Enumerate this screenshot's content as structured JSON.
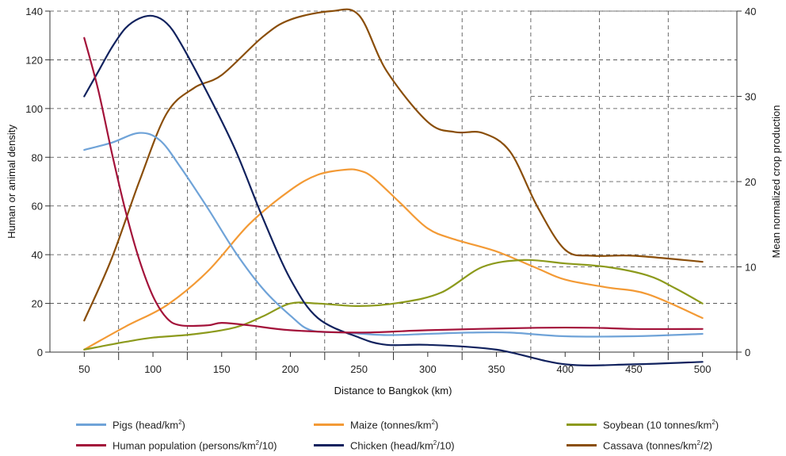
{
  "chart_data": {
    "type": "line",
    "title": "",
    "xlabel": "Distance to Bangkok (km)",
    "ylabel_left": "Human or animal density",
    "ylabel_right": "Mean normalized crop production",
    "xlim": [
      25,
      525
    ],
    "ylim_left": [
      0,
      140
    ],
    "ylim_right": [
      0,
      40
    ],
    "x_ticks": [
      50,
      100,
      150,
      200,
      250,
      300,
      350,
      400,
      450,
      500
    ],
    "y_left_ticks": [
      0,
      20,
      40,
      60,
      80,
      100,
      120,
      140
    ],
    "y_right_ticks": [
      0,
      10,
      20,
      30,
      40
    ],
    "grid": "dashed",
    "legend_position": "bottom",
    "series": [
      {
        "name": "Pigs (head/km2)",
        "axis": "left",
        "color": "#6fa3d8",
        "x": [
          50,
          70,
          90,
          105,
          120,
          140,
          160,
          180,
          200,
          215,
          240,
          270,
          300,
          330,
          360,
          400,
          450,
          500
        ],
        "y": [
          83,
          86,
          90,
          87,
          76,
          59,
          41,
          26,
          15,
          9,
          8,
          7,
          7.5,
          8,
          8,
          6.5,
          6.5,
          7.5
        ]
      },
      {
        "name": "Human population (persons/km2/10)",
        "axis": "left",
        "color": "#a3123a",
        "x": [
          50,
          60,
          70,
          80,
          90,
          100,
          110,
          120,
          140,
          150,
          170,
          200,
          250,
          300,
          380,
          420,
          450,
          500
        ],
        "y": [
          129,
          108,
          82,
          58,
          38,
          23,
          14,
          11,
          11,
          12,
          11,
          9,
          8,
          9,
          10,
          10,
          9.5,
          9.5
        ]
      },
      {
        "name": "Maize (tonnes/km2)",
        "axis": "right",
        "color": "#f39a35",
        "x": [
          50,
          80,
          110,
          140,
          170,
          200,
          220,
          240,
          250,
          260,
          280,
          300,
          320,
          350,
          380,
          400,
          430,
          460,
          500
        ],
        "y": [
          0.3,
          3.0,
          5.5,
          9.5,
          15,
          19,
          20.8,
          21.4,
          21.3,
          20.5,
          17.5,
          14.5,
          13.2,
          11.8,
          9.8,
          8.5,
          7.6,
          6.8,
          4.0
        ]
      },
      {
        "name": "Chicken (head/km2/10)",
        "axis": "left",
        "color": "#11225e",
        "x": [
          50,
          60,
          70,
          80,
          90,
          100,
          110,
          120,
          140,
          160,
          180,
          200,
          220,
          250,
          270,
          300,
          350,
          400,
          450,
          500
        ],
        "y": [
          105,
          115,
          125,
          133,
          137,
          138,
          135,
          127,
          106,
          83,
          55,
          30,
          14,
          6,
          3,
          3,
          1,
          -5,
          -5,
          -4
        ]
      },
      {
        "name": "Soybean (10 tonnes/km2)",
        "axis": "right",
        "color": "#8c9a1c",
        "x": [
          50,
          80,
          100,
          130,
          160,
          180,
          200,
          220,
          250,
          280,
          310,
          340,
          370,
          400,
          430,
          460,
          480,
          500
        ],
        "y": [
          0.3,
          1.2,
          1.7,
          2.1,
          2.9,
          4.2,
          5.7,
          5.7,
          5.4,
          5.8,
          7.0,
          10.0,
          10.8,
          10.4,
          10.0,
          9.0,
          7.5,
          5.7
        ]
      },
      {
        "name": "Cassava (tonnes/km2/2)",
        "axis": "right",
        "color": "#8a4e09",
        "x": [
          50,
          70,
          90,
          110,
          130,
          150,
          180,
          200,
          230,
          250,
          270,
          300,
          320,
          340,
          360,
          380,
          400,
          420,
          450,
          500
        ],
        "y": [
          3.7,
          11,
          20,
          28,
          31,
          32.5,
          37,
          39,
          40,
          39.5,
          33,
          27,
          25.8,
          25.7,
          23.5,
          17,
          12,
          11.3,
          11.3,
          10.6
        ]
      }
    ]
  },
  "legend": [
    {
      "label": "Pigs (head/km",
      "sup": "2",
      "tail": ")",
      "color": "#6fa3d8"
    },
    {
      "label": "Maize (tonnes/km",
      "sup": "2",
      "tail": ")",
      "color": "#f39a35"
    },
    {
      "label": "Soybean (10 tonnes/km",
      "sup": "2",
      "tail": ")",
      "color": "#8c9a1c"
    },
    {
      "label": "Human population (persons/km",
      "sup": "2",
      "tail": "/10)",
      "color": "#a3123a"
    },
    {
      "label": "Chicken (head/km",
      "sup": "2",
      "tail": "/10)",
      "color": "#11225e"
    },
    {
      "label": "Cassava (tonnes/km",
      "sup": "2",
      "tail": "/2)",
      "color": "#8a4e09"
    }
  ]
}
